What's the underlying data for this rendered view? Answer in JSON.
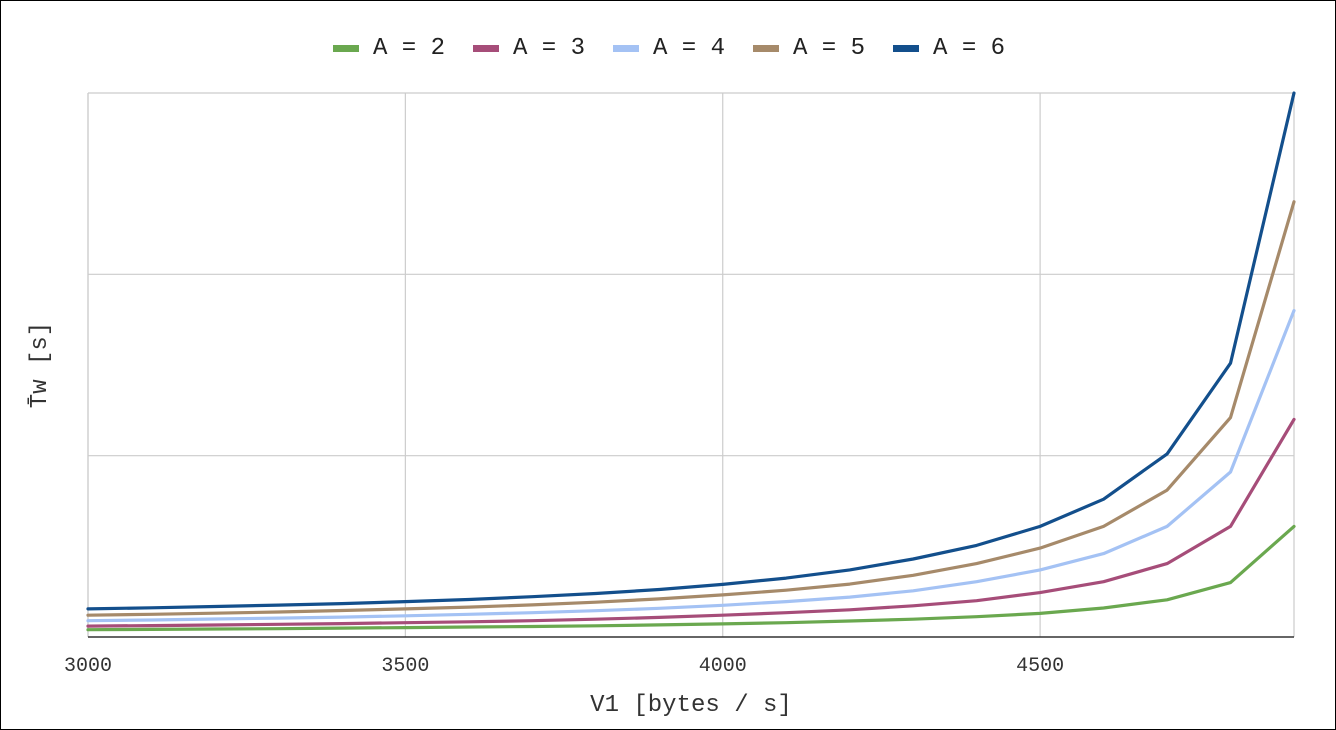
{
  "chart_data": {
    "type": "line",
    "xlabel": "V1 [bytes / s]",
    "ylabel": "T̄w [s]",
    "xlim": [
      3000,
      4900
    ],
    "ylim": [
      0,
      3
    ],
    "x_ticks": [
      "3000",
      "3500",
      "4000",
      "4500"
    ],
    "grid": true,
    "legend_placement": "top-center",
    "x": [
      3000,
      3100,
      3200,
      3300,
      3400,
      3500,
      3600,
      3700,
      3800,
      3900,
      4000,
      4100,
      4200,
      4300,
      4400,
      4500,
      4600,
      4700,
      4800,
      4900
    ],
    "series": [
      {
        "name": "A = 2",
        "color": "#6aa84f",
        "values": [
          0.04,
          0.042,
          0.044,
          0.046,
          0.049,
          0.052,
          0.055,
          0.058,
          0.062,
          0.067,
          0.072,
          0.079,
          0.088,
          0.098,
          0.112,
          0.13,
          0.16,
          0.205,
          0.3,
          0.61
        ]
      },
      {
        "name": "A = 3",
        "color": "#a64d79",
        "values": [
          0.06,
          0.063,
          0.066,
          0.07,
          0.074,
          0.079,
          0.084,
          0.09,
          0.098,
          0.108,
          0.12,
          0.134,
          0.15,
          0.172,
          0.2,
          0.245,
          0.305,
          0.405,
          0.61,
          1.2
        ]
      },
      {
        "name": "A = 4",
        "color": "#a4c2f4",
        "values": [
          0.09,
          0.094,
          0.099,
          0.104,
          0.11,
          0.117,
          0.125,
          0.134,
          0.145,
          0.158,
          0.175,
          0.195,
          0.22,
          0.255,
          0.305,
          0.37,
          0.46,
          0.61,
          0.91,
          1.8
        ]
      },
      {
        "name": "A = 5",
        "color": "#a68a6a",
        "values": [
          0.12,
          0.125,
          0.131,
          0.138,
          0.146,
          0.155,
          0.165,
          0.177,
          0.192,
          0.21,
          0.232,
          0.258,
          0.292,
          0.34,
          0.405,
          0.49,
          0.61,
          0.81,
          1.21,
          2.4
        ]
      },
      {
        "name": "A = 6",
        "color": "#134f8c",
        "values": [
          0.155,
          0.161,
          0.168,
          0.176,
          0.184,
          0.195,
          0.207,
          0.222,
          0.24,
          0.262,
          0.29,
          0.325,
          0.37,
          0.43,
          0.505,
          0.61,
          0.76,
          1.01,
          1.51,
          3.0
        ]
      }
    ]
  }
}
